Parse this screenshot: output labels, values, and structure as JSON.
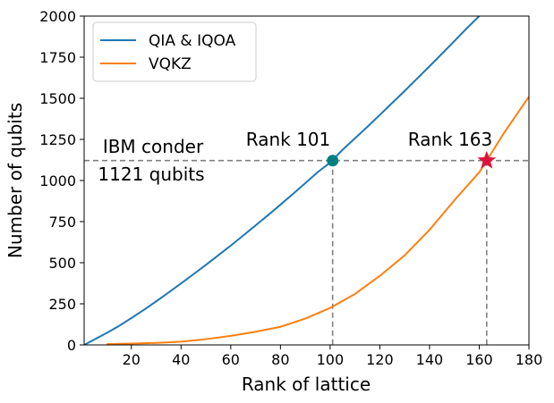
{
  "chart_data": {
    "type": "line",
    "title": "",
    "xlabel": "Rank of lattice",
    "ylabel": "Number of qubits",
    "xlim": [
      1,
      180
    ],
    "ylim": [
      0,
      2000
    ],
    "xticks": [
      20,
      40,
      60,
      80,
      100,
      120,
      140,
      160,
      180
    ],
    "yticks": [
      0,
      250,
      500,
      750,
      1000,
      1250,
      1500,
      1750,
      2000
    ],
    "grid": false,
    "legend_position": "top-left",
    "series": [
      {
        "name": "QIA & IQOA",
        "color": "#1f77b4",
        "x": [
          1,
          5,
          10,
          15,
          20,
          25,
          30,
          35,
          40,
          45,
          50,
          55,
          60,
          65,
          70,
          75,
          80,
          85,
          90,
          95,
          100,
          105,
          110,
          115,
          120,
          125,
          130,
          135,
          140,
          145,
          150,
          155,
          160,
          165,
          170,
          172
        ],
        "y": [
          0,
          32,
          72,
          115,
          163,
          213,
          265,
          319,
          374,
          430,
          487,
          545,
          604,
          665,
          727,
          789,
          853,
          918,
          984,
          1051,
          1109,
          1187,
          1257,
          1327,
          1399,
          1472,
          1545,
          1620,
          1695,
          1771,
          1848,
          1926,
          2000,
          2050,
          2100,
          2120
        ]
      },
      {
        "name": "VQKZ",
        "color": "#ff7f0e",
        "x": [
          10,
          20,
          30,
          40,
          50,
          60,
          70,
          80,
          90,
          100,
          110,
          120,
          130,
          140,
          150,
          160,
          163,
          170,
          180
        ],
        "y": [
          5,
          8,
          12,
          20,
          35,
          55,
          80,
          110,
          160,
          225,
          310,
          420,
          545,
          700,
          880,
          1050,
          1121,
          1290,
          1510
        ]
      }
    ],
    "reference_lines": {
      "horizontal_y": 1121,
      "vertical_x": [
        101,
        163
      ],
      "color": "#808080",
      "style": "dashed"
    },
    "markers": [
      {
        "x": 101,
        "y": 1121,
        "shape": "circle",
        "color": "#008080"
      },
      {
        "x": 163,
        "y": 1121,
        "shape": "star",
        "color": "#dc143c"
      }
    ],
    "annotations": [
      {
        "id": "ibm_line1",
        "text": "IBM conder"
      },
      {
        "id": "ibm_line2",
        "text": "1121 qubits"
      },
      {
        "id": "rank101",
        "text": "Rank 101"
      },
      {
        "id": "rank163",
        "text": "Rank 163"
      }
    ]
  }
}
